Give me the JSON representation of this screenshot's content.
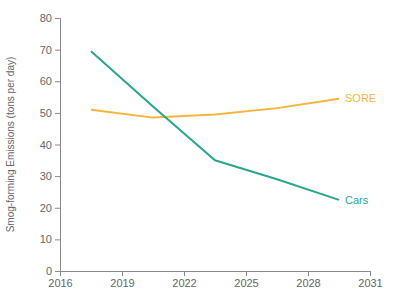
{
  "chart_data": {
    "type": "line",
    "y_label": "Smog-forming Emissions (tons per day)",
    "x": [
      2017.5,
      2020.5,
      2023.5,
      2026.5,
      2029.5
    ],
    "series": [
      {
        "name": "SORE",
        "color": "#f5b53a",
        "values": [
          51,
          48.5,
          49.5,
          51.5,
          54.5
        ]
      },
      {
        "name": "Cars",
        "color": "#2aa58e",
        "values": [
          69.5,
          52,
          35,
          29,
          22.5
        ]
      }
    ],
    "xlim": [
      2016,
      2031
    ],
    "xticks": [
      2016,
      2019,
      2022,
      2025,
      2028,
      2031
    ],
    "ylim": [
      0,
      80
    ],
    "yticks": [
      0,
      10,
      20,
      30,
      40,
      50,
      60,
      70,
      80
    ],
    "grid": false
  }
}
